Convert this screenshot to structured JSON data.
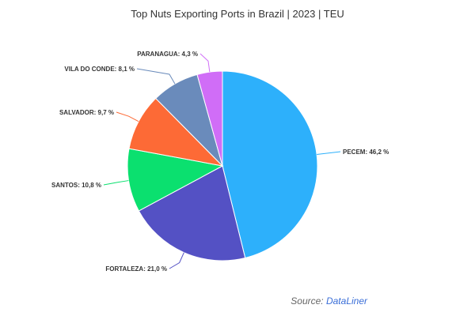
{
  "chart_data": {
    "type": "pie",
    "title": "Top Nuts Exporting Ports in Brazil | 2023 | TEU",
    "source_prefix": "Source: ",
    "source_name": "DataLiner",
    "unit": "%",
    "slices": [
      {
        "label": "PECEM",
        "value": 46.2,
        "display": "PECEM: 46,2 %",
        "color": "#2db0fb"
      },
      {
        "label": "FORTALEZA",
        "value": 21.0,
        "display": "FORTALEZA: 21,0 %",
        "color": "#5451c4"
      },
      {
        "label": "SANTOS",
        "value": 10.8,
        "display": "SANTOS: 10,8 %",
        "color": "#0be06f"
      },
      {
        "label": "SALVADOR",
        "value": 9.7,
        "display": "SALVADOR: 9,7 %",
        "color": "#fd6a36"
      },
      {
        "label": "VILA DO CONDE",
        "value": 8.1,
        "display": "VILA DO CONDE: 8,1 %",
        "color": "#6a8bbb"
      },
      {
        "label": "PARANAGUA",
        "value": 4.3,
        "display": "PARANAGUA: 4,3 %",
        "color": "#d06df7"
      }
    ]
  }
}
